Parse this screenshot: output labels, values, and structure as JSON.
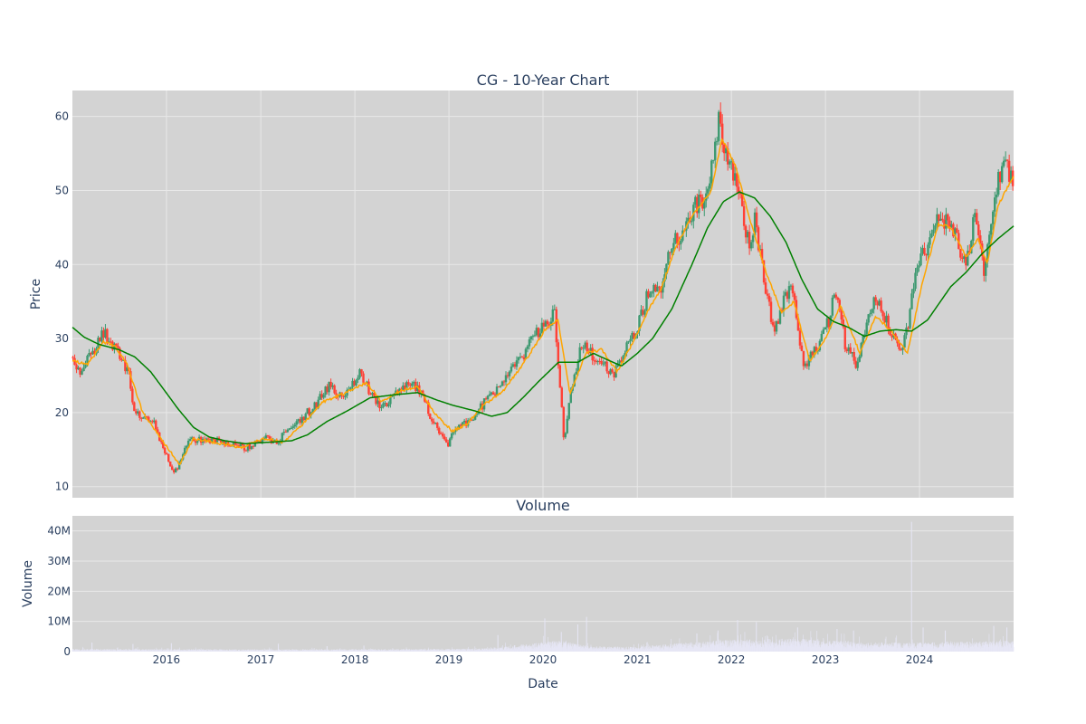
{
  "chart_data": [
    {
      "type": "candlestick",
      "title": "CG - 10-Year Chart",
      "xlabel": "",
      "ylabel": "Price",
      "x_range": [
        "2015-01-01",
        "2024-12-31"
      ],
      "ylim": [
        8.5,
        63.5
      ],
      "y_ticks": [
        10,
        20,
        30,
        40,
        50,
        60
      ],
      "x_ticks": [
        "2016",
        "2017",
        "2018",
        "2019",
        "2020",
        "2021",
        "2022",
        "2023",
        "2024"
      ],
      "grid": true,
      "colors": {
        "background": "#d3d3d3",
        "grid": "#e8e8e8",
        "up": "#3d9970",
        "down": "#ff4136",
        "short_ma": "#ffa500",
        "long_ma": "#008000"
      },
      "price_anchors": [
        [
          "2015-01-02",
          27.5
        ],
        [
          "2015-02-01",
          25.5
        ],
        [
          "2015-03-01",
          27.0
        ],
        [
          "2015-04-10",
          29.5
        ],
        [
          "2015-05-01",
          31.0
        ],
        [
          "2015-06-01",
          29.5
        ],
        [
          "2015-07-15",
          27.0
        ],
        [
          "2015-08-10",
          25.0
        ],
        [
          "2015-08-28",
          20.0
        ],
        [
          "2015-10-01",
          19.5
        ],
        [
          "2015-11-15",
          18.5
        ],
        [
          "2015-12-15",
          15.5
        ],
        [
          "2016-01-20",
          12.5
        ],
        [
          "2016-02-11",
          12.0
        ],
        [
          "2016-03-10",
          15.0
        ],
        [
          "2016-04-10",
          16.5
        ],
        [
          "2016-06-01",
          16.0
        ],
        [
          "2016-07-15",
          16.5
        ],
        [
          "2016-09-01",
          15.8
        ],
        [
          "2016-11-01",
          15.2
        ],
        [
          "2016-12-15",
          16.0
        ],
        [
          "2017-01-20",
          16.5
        ],
        [
          "2017-03-01",
          16.0
        ],
        [
          "2017-04-15",
          17.5
        ],
        [
          "2017-06-01",
          19.0
        ],
        [
          "2017-08-01",
          21.0
        ],
        [
          "2017-10-01",
          24.0
        ],
        [
          "2017-11-15",
          21.5
        ],
        [
          "2018-01-25",
          25.5
        ],
        [
          "2018-03-01",
          22.5
        ],
        [
          "2018-04-15",
          20.5
        ],
        [
          "2018-06-01",
          22.5
        ],
        [
          "2018-08-01",
          24.0
        ],
        [
          "2018-09-15",
          23.0
        ],
        [
          "2018-10-15",
          20.0
        ],
        [
          "2018-12-24",
          15.5
        ],
        [
          "2019-02-01",
          18.0
        ],
        [
          "2019-04-01",
          19.0
        ],
        [
          "2019-06-01",
          22.0
        ],
        [
          "2019-08-01",
          24.0
        ],
        [
          "2019-10-01",
          27.0
        ],
        [
          "2019-12-01",
          30.5
        ],
        [
          "2020-02-15",
          33.5
        ],
        [
          "2020-03-23",
          16.0
        ],
        [
          "2020-04-15",
          22.0
        ],
        [
          "2020-06-01",
          29.5
        ],
        [
          "2020-07-15",
          27.5
        ],
        [
          "2020-09-01",
          26.0
        ],
        [
          "2020-10-01",
          25.0
        ],
        [
          "2020-11-15",
          28.5
        ],
        [
          "2021-01-01",
          31.5
        ],
        [
          "2021-02-15",
          36.5
        ],
        [
          "2021-04-01",
          37.0
        ],
        [
          "2021-05-15",
          43.0
        ],
        [
          "2021-07-01",
          44.5
        ],
        [
          "2021-08-15",
          48.0
        ],
        [
          "2021-10-01",
          48.5
        ],
        [
          "2021-11-10",
          59.5
        ],
        [
          "2021-12-15",
          55.0
        ],
        [
          "2022-02-01",
          50.5
        ],
        [
          "2022-03-10",
          42.0
        ],
        [
          "2022-04-01",
          46.0
        ],
        [
          "2022-05-15",
          36.0
        ],
        [
          "2022-06-20",
          31.0
        ],
        [
          "2022-08-15",
          37.5
        ],
        [
          "2022-09-10",
          33.0
        ],
        [
          "2022-10-10",
          26.0
        ],
        [
          "2022-12-01",
          29.0
        ],
        [
          "2023-01-15",
          32.5
        ],
        [
          "2023-02-10",
          36.5
        ],
        [
          "2023-03-20",
          29.0
        ],
        [
          "2023-05-01",
          26.5
        ],
        [
          "2023-06-15",
          33.0
        ],
        [
          "2023-07-20",
          35.5
        ],
        [
          "2023-09-01",
          32.0
        ],
        [
          "2023-10-15",
          28.5
        ],
        [
          "2023-11-15",
          31.0
        ],
        [
          "2023-12-20",
          40.5
        ],
        [
          "2024-02-01",
          41.5
        ],
        [
          "2024-03-15",
          46.5
        ],
        [
          "2024-05-01",
          45.0
        ],
        [
          "2024-07-01",
          40.5
        ],
        [
          "2024-08-01",
          46.0
        ],
        [
          "2024-09-10",
          39.0
        ],
        [
          "2024-10-15",
          48.0
        ],
        [
          "2024-11-15",
          53.5
        ],
        [
          "2024-12-10",
          52.5
        ],
        [
          "2024-12-31",
          50.5
        ]
      ],
      "short_ma_anchors": [
        [
          "2015-01-02",
          27.0
        ],
        [
          "2015-03-01",
          26.5
        ],
        [
          "2015-05-01",
          29.5
        ],
        [
          "2015-06-15",
          29.0
        ],
        [
          "2015-08-01",
          26.5
        ],
        [
          "2015-10-01",
          20.0
        ],
        [
          "2015-12-01",
          17.0
        ],
        [
          "2016-02-20",
          13.0
        ],
        [
          "2016-04-15",
          16.5
        ],
        [
          "2016-07-01",
          16.0
        ],
        [
          "2016-10-15",
          15.3
        ],
        [
          "2017-01-15",
          16.5
        ],
        [
          "2017-04-01",
          16.0
        ],
        [
          "2017-06-15",
          18.5
        ],
        [
          "2017-09-01",
          21.5
        ],
        [
          "2017-11-15",
          22.5
        ],
        [
          "2018-02-15",
          24.0
        ],
        [
          "2018-04-15",
          21.5
        ],
        [
          "2018-07-01",
          23.0
        ],
        [
          "2018-09-01",
          23.5
        ],
        [
          "2018-11-15",
          19.5
        ],
        [
          "2019-01-15",
          17.5
        ],
        [
          "2019-03-15",
          18.5
        ],
        [
          "2019-05-15",
          21.0
        ],
        [
          "2019-08-01",
          23.0
        ],
        [
          "2019-10-15",
          26.5
        ],
        [
          "2020-01-15",
          31.5
        ],
        [
          "2020-02-28",
          32.5
        ],
        [
          "2020-04-15",
          22.5
        ],
        [
          "2020-06-15",
          28.0
        ],
        [
          "2020-08-15",
          28.5
        ],
        [
          "2020-10-15",
          25.5
        ],
        [
          "2020-12-15",
          29.5
        ],
        [
          "2021-02-15",
          34.0
        ],
        [
          "2021-04-01",
          36.5
        ],
        [
          "2021-06-01",
          42.5
        ],
        [
          "2021-08-01",
          46.5
        ],
        [
          "2021-10-15",
          50.0
        ],
        [
          "2021-11-25",
          57.0
        ],
        [
          "2022-01-15",
          53.5
        ],
        [
          "2022-03-15",
          46.0
        ],
        [
          "2022-05-15",
          39.0
        ],
        [
          "2022-07-15",
          33.5
        ],
        [
          "2022-09-01",
          35.0
        ],
        [
          "2022-11-01",
          27.0
        ],
        [
          "2023-01-01",
          30.0
        ],
        [
          "2023-03-01",
          34.5
        ],
        [
          "2023-05-15",
          28.0
        ],
        [
          "2023-07-15",
          33.0
        ],
        [
          "2023-09-15",
          31.0
        ],
        [
          "2023-11-15",
          28.0
        ],
        [
          "2024-01-15",
          38.0
        ],
        [
          "2024-03-15",
          45.5
        ],
        [
          "2024-05-01",
          45.0
        ],
        [
          "2024-07-01",
          41.0
        ],
        [
          "2024-08-15",
          43.5
        ],
        [
          "2024-09-20",
          40.0
        ],
        [
          "2024-11-01",
          48.0
        ],
        [
          "2024-12-31",
          52.0
        ]
      ],
      "long_ma_anchors": [
        [
          "2015-01-02",
          31.5
        ],
        [
          "2015-02-15",
          30.2
        ],
        [
          "2015-04-15",
          29.2
        ],
        [
          "2015-07-01",
          28.5
        ],
        [
          "2015-09-01",
          27.5
        ],
        [
          "2015-11-01",
          25.5
        ],
        [
          "2015-12-20",
          23.2
        ],
        [
          "2016-02-15",
          20.5
        ],
        [
          "2016-04-15",
          18.0
        ],
        [
          "2016-06-15",
          16.7
        ],
        [
          "2016-08-15",
          16.2
        ],
        [
          "2016-11-01",
          15.8
        ],
        [
          "2017-02-01",
          16.0
        ],
        [
          "2017-05-01",
          16.2
        ],
        [
          "2017-07-01",
          17.0
        ],
        [
          "2017-09-15",
          18.8
        ],
        [
          "2017-12-01",
          20.2
        ],
        [
          "2018-03-01",
          22.0
        ],
        [
          "2018-06-01",
          22.4
        ],
        [
          "2018-09-01",
          22.7
        ],
        [
          "2018-11-15",
          21.7
        ],
        [
          "2019-01-15",
          21.0
        ],
        [
          "2019-04-15",
          20.2
        ],
        [
          "2019-06-15",
          19.5
        ],
        [
          "2019-08-15",
          20.0
        ],
        [
          "2019-10-15",
          22.0
        ],
        [
          "2019-12-15",
          24.2
        ],
        [
          "2020-03-01",
          26.8
        ],
        [
          "2020-05-15",
          26.8
        ],
        [
          "2020-07-15",
          28.0
        ],
        [
          "2020-09-15",
          27.0
        ],
        [
          "2020-11-01",
          26.3
        ],
        [
          "2021-01-01",
          28.0
        ],
        [
          "2021-03-01",
          30.0
        ],
        [
          "2021-05-15",
          34.0
        ],
        [
          "2021-08-01",
          40.0
        ],
        [
          "2021-10-01",
          45.0
        ],
        [
          "2021-12-01",
          48.5
        ],
        [
          "2022-02-01",
          49.8
        ],
        [
          "2022-04-01",
          49.0
        ],
        [
          "2022-06-01",
          46.5
        ],
        [
          "2022-08-01",
          43.0
        ],
        [
          "2022-10-01",
          38.0
        ],
        [
          "2022-12-01",
          34.0
        ],
        [
          "2023-02-01",
          32.3
        ],
        [
          "2023-04-01",
          31.5
        ],
        [
          "2023-06-01",
          30.3
        ],
        [
          "2023-08-01",
          31.0
        ],
        [
          "2023-10-01",
          31.2
        ],
        [
          "2023-12-01",
          31.0
        ],
        [
          "2024-02-01",
          32.5
        ],
        [
          "2024-05-01",
          37.0
        ],
        [
          "2024-07-01",
          39.0
        ],
        [
          "2024-09-01",
          41.5
        ],
        [
          "2024-11-01",
          43.5
        ],
        [
          "2024-12-31",
          45.2
        ]
      ]
    },
    {
      "type": "bar",
      "title": "Volume",
      "xlabel": "Date",
      "ylabel": "Volume",
      "x_range": [
        "2015-01-01",
        "2024-12-31"
      ],
      "ylim": [
        0,
        45000000
      ],
      "y_ticks": [
        0,
        10000000,
        20000000,
        30000000,
        40000000
      ],
      "y_tick_labels": [
        "0",
        "10M",
        "20M",
        "30M",
        "40M"
      ],
      "x_ticks": [
        "2016",
        "2017",
        "2018",
        "2019",
        "2020",
        "2021",
        "2022",
        "2023",
        "2024"
      ],
      "grid": true,
      "colors": {
        "background": "#d3d3d3",
        "grid": "#e8e8e8",
        "bar": "#e6e6f5"
      },
      "volume_baseline": [
        [
          "2015-01-01",
          700000
        ],
        [
          "2017-01-01",
          600000
        ],
        [
          "2019-01-01",
          700000
        ],
        [
          "2019-06-01",
          900000
        ],
        [
          "2020-03-01",
          3000000
        ],
        [
          "2020-07-01",
          1400000
        ],
        [
          "2021-01-01",
          1300000
        ],
        [
          "2021-06-01",
          2200000
        ],
        [
          "2022-01-01",
          3200000
        ],
        [
          "2022-10-01",
          3500000
        ],
        [
          "2023-06-01",
          2400000
        ],
        [
          "2024-06-01",
          2600000
        ],
        [
          "2024-12-31",
          3000000
        ]
      ],
      "volume_spikes": [
        [
          "2015-03-18",
          3000000
        ],
        [
          "2015-08-24",
          2500000
        ],
        [
          "2016-01-20",
          2800000
        ],
        [
          "2017-03-10",
          2600000
        ],
        [
          "2017-09-15",
          1800000
        ],
        [
          "2018-02-05",
          2000000
        ],
        [
          "2019-07-10",
          5500000
        ],
        [
          "2020-01-08",
          11000000
        ],
        [
          "2020-03-12",
          6500000
        ],
        [
          "2020-05-15",
          9000000
        ],
        [
          "2020-06-18",
          11500000
        ],
        [
          "2021-08-20",
          6000000
        ],
        [
          "2021-11-10",
          7000000
        ],
        [
          "2022-01-25",
          10500000
        ],
        [
          "2022-04-08",
          9800000
        ],
        [
          "2022-09-15",
          8000000
        ],
        [
          "2023-02-15",
          7500000
        ],
        [
          "2023-04-20",
          7000000
        ],
        [
          "2023-12-01",
          43000000
        ],
        [
          "2024-01-15",
          8000000
        ],
        [
          "2024-04-10",
          7000000
        ],
        [
          "2024-10-15",
          8500000
        ],
        [
          "2024-12-05",
          8000000
        ]
      ]
    }
  ]
}
